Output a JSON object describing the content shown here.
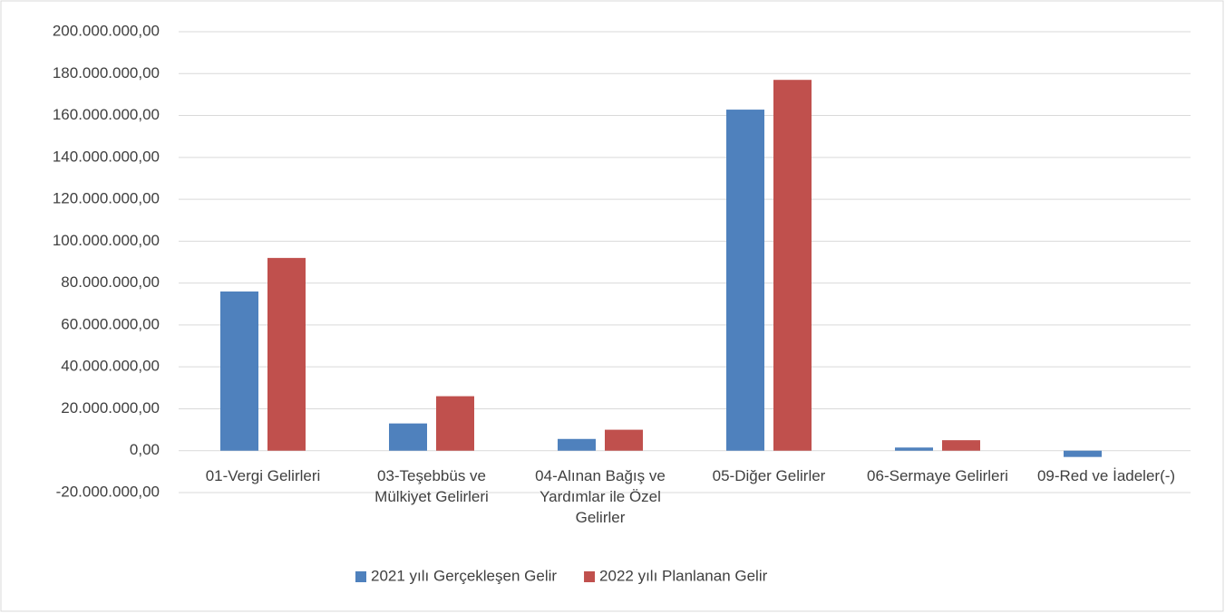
{
  "chart_data": {
    "type": "bar",
    "categories": [
      "01-Vergi Gelirleri",
      "03-Teşebbüs ve Mülkiyet Gelirleri",
      "04-Alınan Bağış ve Yardımlar ile Özel Gelirler",
      "05-Diğer Gelirler",
      "06-Sermaye Gelirleri",
      "09-Red ve İadeler(-)"
    ],
    "series": [
      {
        "name": "2021 yılı Gerçekleşen Gelir",
        "color": "#4f81bd",
        "values": [
          76000000,
          13000000,
          5600000,
          162800000,
          1500000,
          -3000000
        ]
      },
      {
        "name": "2022 yılı Planlanan Gelir",
        "color": "#c0504d",
        "values": [
          92000000,
          26000000,
          10000000,
          177000000,
          5000000,
          0
        ]
      }
    ],
    "ylim": [
      -20000000,
      200000000
    ],
    "yticks": [
      {
        "value": -20000000,
        "label": "-20.000.000,00"
      },
      {
        "value": 0,
        "label": "0,00"
      },
      {
        "value": 20000000,
        "label": "20.000.000,00"
      },
      {
        "value": 40000000,
        "label": "40.000.000,00"
      },
      {
        "value": 60000000,
        "label": "60.000.000,00"
      },
      {
        "value": 80000000,
        "label": "80.000.000,00"
      },
      {
        "value": 100000000,
        "label": "100.000.000,00"
      },
      {
        "value": 120000000,
        "label": "120.000.000,00"
      },
      {
        "value": 140000000,
        "label": "140.000.000,00"
      },
      {
        "value": 160000000,
        "label": "160.000.000,00"
      },
      {
        "value": 180000000,
        "label": "180.000.000,00"
      },
      {
        "value": 200000000,
        "label": "200.000.000,00"
      }
    ],
    "grid": true,
    "legend": "bottom"
  }
}
